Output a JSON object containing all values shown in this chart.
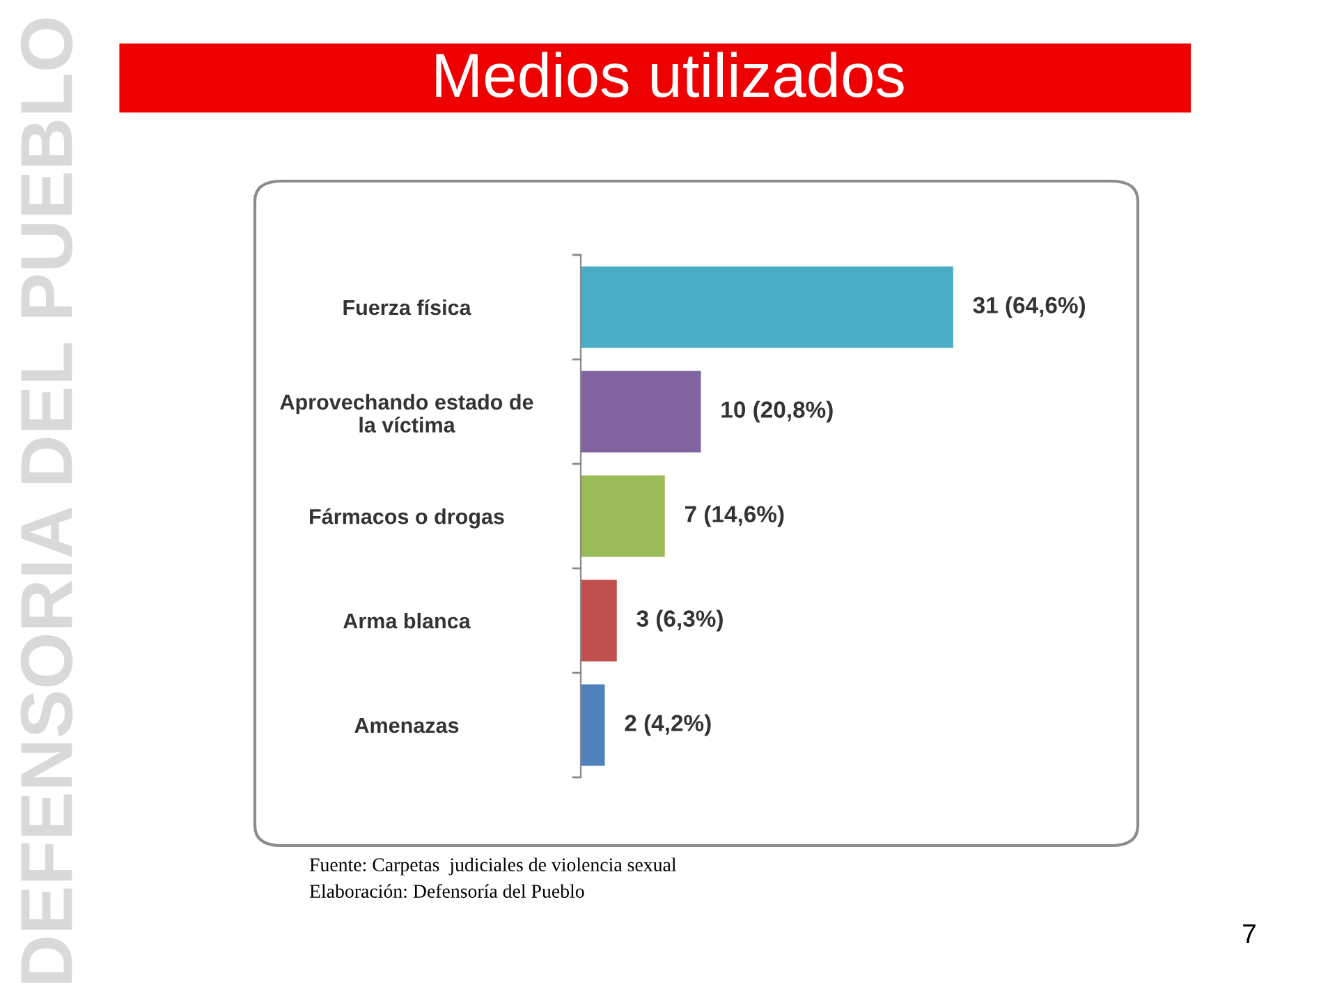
{
  "chart_data": {
    "type": "bar",
    "orientation": "horizontal",
    "title": "Medios utilizados",
    "categories": [
      "Fuerza física",
      "Aprovechando estado de\nla víctima",
      "Fármacos o drogas",
      "Arma blanca",
      "Amenazas"
    ],
    "values": [
      31,
      10,
      7,
      3,
      2
    ],
    "colors": [
      "#4bacc6",
      "#8064a2",
      "#9bbb59",
      "#c0504d",
      "#4f81bd"
    ],
    "value_labels": [
      "31 (64,6%)",
      "10 (20,8%)",
      "7 (14,6%)",
      "3 (6,3%)",
      "2 (4,2%)"
    ],
    "annotations": [
      "Fuente: Carpetas  judiciales de violencia sexual",
      "Elaboración: Defensoría del Pueblo",
      "7",
      "DEFENSORIA DEL PUEBLO"
    ],
    "grid": false,
    "legend": false
  }
}
